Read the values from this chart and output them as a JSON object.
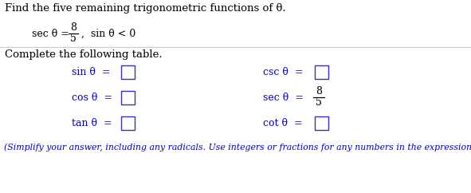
{
  "title_text": "Find the five remaining trigonometric functions of θ.",
  "complete_text": "Complete the following table.",
  "footer_text": "(Simplify your answer, including any radicals. Use integers or fractions for any numbers in the expression.)",
  "text_color": "#000000",
  "blue_color": "#0000CC",
  "box_edge_color": "#3333CC",
  "bg_color": "#FFFFFF",
  "line_color": "#CCCCCC",
  "fs_title": 9.5,
  "fs_body": 9.0,
  "fs_footer": 7.8
}
